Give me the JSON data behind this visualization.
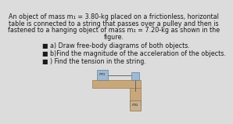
{
  "bg_color": "#dcdcdc",
  "title_text_lines": [
    "An object of mass m₁ = 3.80-kg placed on a frictionless, horizontal",
    "table is connected to a string that passes over a pulley and then is",
    "fastened to a hanging object of mass m₂ = 7.20-kg as shown in the",
    "figure."
  ],
  "bullet1": "a) Draw free-body diagrams of both objects.",
  "bullet2": "b)Find the magnitude of the acceleration of the objects.",
  "bullet3": ") Find the tension in the string.",
  "main_font_size": 5.8,
  "bullet_font_size": 5.8,
  "text_color": "#1a1a1a",
  "table_color": "#c8a87a",
  "table_edge_color": "#9a7a50",
  "block_m1_color": "#a0b8d0",
  "block_m1_edge": "#6080a0",
  "block_m2_color": "#c8b090",
  "block_m2_edge": "#907040",
  "pulley_color": "#a0b8d0",
  "pulley_edge": "#6080a0",
  "string_color": "#555555"
}
